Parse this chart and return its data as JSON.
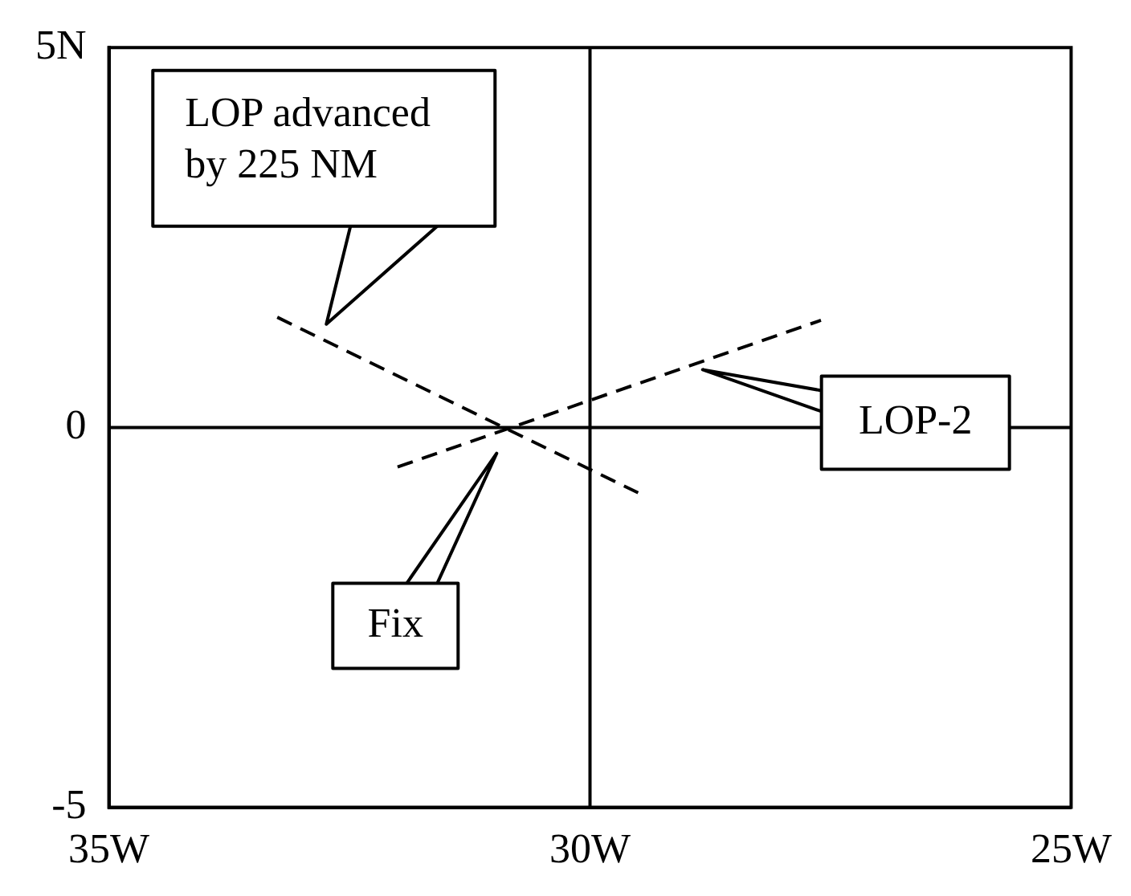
{
  "chart_data": {
    "type": "line",
    "xlim": [
      -35,
      -25
    ],
    "ylim": [
      -5,
      5
    ],
    "xticks": [
      {
        "value": -35,
        "label": "35W"
      },
      {
        "value": -30,
        "label": "30W"
      },
      {
        "value": -25,
        "label": "25W"
      }
    ],
    "yticks": [
      -5,
      0,
      {
        "value": 5,
        "label": "5N"
      }
    ],
    "series": [
      {
        "color": "#000000",
        "x": [
          -33.25,
          -29.5
        ],
        "values": [
          1.45,
          -0.86
        ]
      },
      {
        "color": "#000000",
        "x": [
          -32.0,
          -27.6
        ],
        "values": [
          -0.52,
          1.41
        ]
      }
    ],
    "line_style": "dashed",
    "marker": "none",
    "legend": false,
    "ref_lines": [
      {
        "axis": "x",
        "value": -30,
        "color": "#000000"
      },
      {
        "axis": "y",
        "value": 0,
        "color": "#000000"
      }
    ],
    "annotations": [
      "LOP advanced by 225 NM",
      "LOP-2",
      "Fix"
    ]
  }
}
